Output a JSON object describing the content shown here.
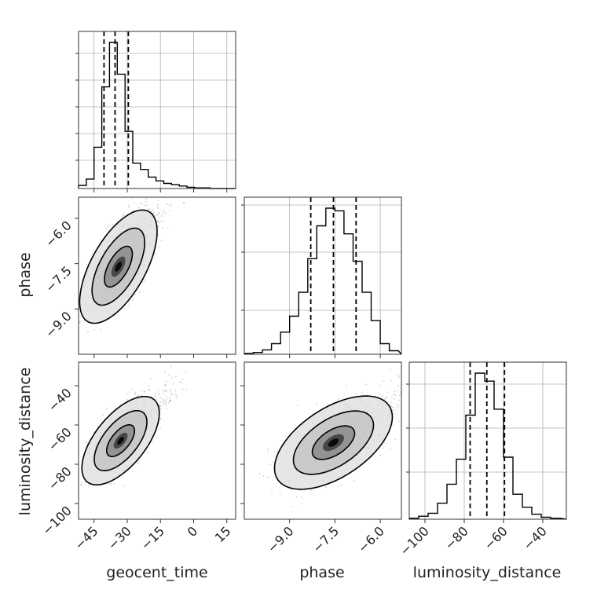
{
  "chart_data": {
    "type": "corner",
    "parameters": [
      "geocent_time",
      "phase",
      "luminosity_distance"
    ],
    "axis_labels": {
      "geocent_time": "geocent_time",
      "phase": "phase",
      "luminosity_distance": "luminosity_distance"
    },
    "ranges": {
      "geocent_time": [
        -52,
        19
      ],
      "phase": [
        -10.5,
        -5.3
      ],
      "luminosity_distance": [
        -108,
        -28
      ]
    },
    "ticks": {
      "geocent_time": [
        "−45",
        "−30",
        "−15",
        "0",
        "15"
      ],
      "phase": [
        "−9.0",
        "−7.5",
        "−6.0"
      ],
      "luminosity_distance": [
        "−100",
        "−80",
        "−60",
        "−40"
      ]
    },
    "tick_values": {
      "geocent_time": [
        -45,
        -30,
        -15,
        0,
        15
      ],
      "phase": [
        -9.0,
        -7.5,
        -6.0
      ],
      "luminosity_distance": [
        -100,
        -80,
        -60,
        -40
      ]
    },
    "quantiles": {
      "geocent_time": [
        -40.5,
        -35.5,
        -29.5
      ],
      "phase": [
        -8.3,
        -7.55,
        -6.8
      ],
      "luminosity_distance": [
        -77,
        -68.5,
        -59.5
      ]
    },
    "histograms": {
      "geocent_time": {
        "edges": [
          -52,
          -48.5,
          -45,
          -41.5,
          -38,
          -34.5,
          -31,
          -27.5,
          -24,
          -20.5,
          -17,
          -13.5,
          -10,
          -6.5,
          -3,
          0.5,
          4,
          7.5,
          11
        ],
        "counts": [
          5,
          15,
          65,
          160,
          230,
          180,
          90,
          40,
          30,
          18,
          12,
          8,
          6,
          4,
          2,
          1,
          1,
          0
        ]
      },
      "phase": {
        "edges": [
          -10.5,
          -10.2,
          -9.9,
          -9.6,
          -9.3,
          -9.0,
          -8.7,
          -8.4,
          -8.1,
          -7.8,
          -7.5,
          -7.2,
          -6.9,
          -6.6,
          -6.3,
          -6.0,
          -5.7,
          -5.4
        ],
        "counts": [
          1,
          2,
          5,
          12,
          25,
          43,
          70,
          108,
          145,
          165,
          162,
          136,
          105,
          70,
          38,
          12,
          4
        ]
      },
      "luminosity_distance": {
        "edges": [
          -108,
          -103.2,
          -98.4,
          -93.6,
          -88.8,
          -84,
          -79.2,
          -74.4,
          -69.6,
          -64.8,
          -60,
          -55.2,
          -50.4,
          -45.6,
          -40.8,
          -36,
          -31.2
        ],
        "counts": [
          1,
          3,
          6,
          16,
          35,
          60,
          104,
          146,
          138,
          110,
          62,
          25,
          12,
          5,
          2,
          1
        ]
      }
    },
    "hist_yticks": {
      "geocent_time": [
        0.18,
        0.35,
        0.52,
        0.69,
        0.86
      ],
      "phase": [
        0.28,
        0.65,
        0.95
      ],
      "luminosity_distance": [
        0.3,
        0.58,
        0.86
      ]
    },
    "scatter_2d": [
      {
        "x": "geocent_time",
        "y": "phase",
        "mean": [
          -34,
          -7.6
        ],
        "sigma": [
          7,
          0.75
        ],
        "rho": 0.62,
        "contours": [
          {
            "level": "1",
            "sx": 0.9,
            "sy": 0.9
          },
          {
            "level": "2",
            "sx": 1.7,
            "sy": 1.7
          },
          {
            "level": "3",
            "sx": 2.5,
            "sy": 2.5
          }
        ]
      },
      {
        "x": "geocent_time",
        "y": "luminosity_distance",
        "mean": [
          -33,
          -68
        ],
        "sigma": [
          7,
          9
        ],
        "rho": 0.62,
        "contours": [
          {
            "level": "1",
            "sx": 0.9,
            "sy": 0.9
          },
          {
            "level": "2",
            "sx": 1.7,
            "sy": 1.7
          },
          {
            "level": "3",
            "sx": 2.5,
            "sy": 2.5
          }
        ]
      },
      {
        "x": "phase",
        "y": "luminosity_distance",
        "mean": [
          -7.55,
          -69
        ],
        "sigma": [
          0.78,
          9.5
        ],
        "rho": 0.55,
        "contours": [
          {
            "level": "1",
            "sx": 0.9,
            "sy": 0.9
          },
          {
            "level": "2",
            "sx": 1.7,
            "sy": 1.7
          },
          {
            "level": "3",
            "sx": 2.5,
            "sy": 2.5
          }
        ]
      }
    ],
    "colors": {
      "line": "#000000",
      "scatter": "#9a9a9a",
      "grid": "#b0b0b0",
      "density_dark": "#000000",
      "density_light": "#ffffff"
    },
    "grid": true
  }
}
